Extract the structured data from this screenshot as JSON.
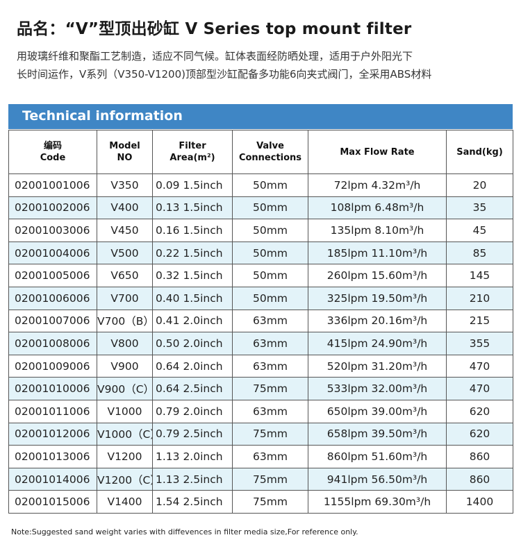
{
  "title": "品名：“V”型顶出砂缸 V Series top mount filter",
  "description": [
    "用玻璃纤维和聚酯工艺制造，适应不同气候。缸体表面经防晒处理，适用于户外阳光下",
    "长时间运作，V系列（V350-V1200)顶部型沙缸配备多功能6向夹式阀门，全采用ABS材料"
  ],
  "section_title": "Technical information",
  "headers": [
    [
      "编码",
      "Code"
    ],
    [
      "Model",
      "NO"
    ],
    [
      "Filter",
      "Area(m²)"
    ],
    [
      "Valve",
      "Connections"
    ],
    [
      "Max Flow Rate"
    ],
    [
      "Sand(kg)"
    ]
  ],
  "rows": [
    {
      "code": "02001001006",
      "model": "V350",
      "area": "0.09  1.5inch",
      "valve": "50mm",
      "flow": "72lpm   4.32m³/h",
      "sand": "20"
    },
    {
      "code": "02001002006",
      "model": "V400",
      "area": "0.13  1.5inch",
      "valve": "50mm",
      "flow": "108lpm   6.48m³/h",
      "sand": "35"
    },
    {
      "code": "02001003006",
      "model": "V450",
      "area": "0.16  1.5inch",
      "valve": "50mm",
      "flow": "135lpm   8.10m³/h",
      "sand": "45"
    },
    {
      "code": "02001004006",
      "model": "V500",
      "area": "0.22  1.5inch",
      "valve": "50mm",
      "flow": "185lpm   11.10m³/h",
      "sand": "85"
    },
    {
      "code": "02001005006",
      "model": "V650",
      "area": "0.32  1.5inch",
      "valve": "50mm",
      "flow": "260lpm   15.60m³/h",
      "sand": "145"
    },
    {
      "code": "02001006006",
      "model": "V700",
      "area": "0.40  1.5inch",
      "valve": "50mm",
      "flow": "325lpm   19.50m³/h",
      "sand": "210"
    },
    {
      "code": "02001007006",
      "model": "V700（B）",
      "area": "0.41  2.0inch",
      "valve": "63mm",
      "flow": "336lpm   20.16m³/h",
      "sand": "215"
    },
    {
      "code": "02001008006",
      "model": "V800",
      "area": "0.50  2.0inch",
      "valve": "63mm",
      "flow": "415lpm   24.90m³/h",
      "sand": "355"
    },
    {
      "code": "02001009006",
      "model": "V900",
      "area": "0.64  2.0inch",
      "valve": "63mm",
      "flow": "520lpm   31.20m³/h",
      "sand": "470"
    },
    {
      "code": "02001010006",
      "model": "V900（C）",
      "area": "0.64  2.5inch",
      "valve": "75mm",
      "flow": "533lpm   32.00m³/h",
      "sand": "470"
    },
    {
      "code": "02001011006",
      "model": "V1000",
      "area": "0.79  2.0inch",
      "valve": "63mm",
      "flow": "650lpm   39.00m³/h",
      "sand": "620"
    },
    {
      "code": "02001012006",
      "model": "V1000（C）",
      "area": "0.79  2.5inch",
      "valve": "75mm",
      "flow": "658lpm   39.50m³/h",
      "sand": "620"
    },
    {
      "code": "02001013006",
      "model": "V1200",
      "area": "1.13  2.0inch",
      "valve": "63mm",
      "flow": "860lpm   51.60m³/h",
      "sand": "860"
    },
    {
      "code": "02001014006",
      "model": "V1200（C）",
      "area": "1.13  2.5inch",
      "valve": "75mm",
      "flow": "941lpm   56.50m³/h",
      "sand": "860"
    },
    {
      "code": "02001015006",
      "model": "V1400",
      "area": "1.54  2.5inch",
      "valve": "75mm",
      "flow": "1155lpm   69.30m³/h",
      "sand": "1400"
    }
  ],
  "note": "Note:Suggested sand weight varies with diffevences in filter media size,For reference only.",
  "colors": {
    "banner": "#3f86c5",
    "alt_row": "#e3f3f9"
  }
}
